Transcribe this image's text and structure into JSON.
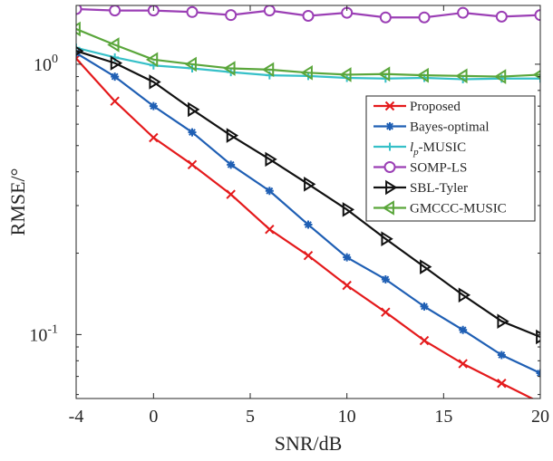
{
  "chart_data": {
    "type": "line",
    "title": "",
    "xlabel": "SNR/dB",
    "ylabel": "RMSE/°",
    "xlim": [
      -4,
      20
    ],
    "ylim": [
      0.058,
      1.65
    ],
    "yscale": "log",
    "grid": false,
    "legend_position": "right",
    "x_ticks": [
      {
        "value": -4,
        "label": "-4"
      },
      {
        "value": 0,
        "label": "0"
      },
      {
        "value": 5,
        "label": "5"
      },
      {
        "value": 10,
        "label": "10"
      },
      {
        "value": 15,
        "label": "15"
      },
      {
        "value": 20,
        "label": "20"
      }
    ],
    "y_ticks": [
      {
        "value": 1,
        "base": "10",
        "exp": "0"
      },
      {
        "value": 0.1,
        "base": "10",
        "exp": "-1"
      }
    ],
    "x": [
      -4,
      -2,
      0,
      2,
      4,
      6,
      8,
      10,
      12,
      14,
      16,
      18,
      20
    ],
    "series": [
      {
        "name": "Proposed",
        "legend_label": {
          "main": "Proposed"
        },
        "color": "#e41a1c",
        "marker": "x",
        "values": [
          1.05,
          0.73,
          0.535,
          0.425,
          0.33,
          0.245,
          0.196,
          0.152,
          0.121,
          0.095,
          0.078,
          0.066,
          0.056
        ]
      },
      {
        "name": "Bayes-optimal",
        "legend_label": {
          "main": "Bayes-optimal"
        },
        "color": "#1f5fb4",
        "marker": "star",
        "values": [
          1.1,
          0.9,
          0.7,
          0.56,
          0.425,
          0.34,
          0.255,
          0.193,
          0.16,
          0.127,
          0.104,
          0.084,
          0.072
        ]
      },
      {
        "name": "lp-MUSIC",
        "legend_label": {
          "main": "-MUSIC",
          "italic": "l",
          "sub": "p"
        },
        "color": "#36c0c8",
        "marker": "plus",
        "values": [
          1.15,
          1.06,
          0.99,
          0.965,
          0.935,
          0.91,
          0.905,
          0.89,
          0.885,
          0.89,
          0.88,
          0.885,
          0.885
        ]
      },
      {
        "name": "SOMP-LS",
        "legend_label": {
          "main": "SOMP-LS"
        },
        "color": "#9b3fb5",
        "marker": "circle",
        "values": [
          1.6,
          1.58,
          1.58,
          1.56,
          1.52,
          1.58,
          1.51,
          1.55,
          1.49,
          1.49,
          1.55,
          1.5,
          1.52
        ]
      },
      {
        "name": "SBL-Tyler",
        "legend_label": {
          "main": "SBL-Tyler"
        },
        "color": "#111111",
        "marker": "triangle-right",
        "values": [
          1.12,
          1.01,
          0.86,
          0.68,
          0.545,
          0.445,
          0.36,
          0.29,
          0.226,
          0.178,
          0.14,
          0.112,
          0.098
        ]
      },
      {
        "name": "GMCCC-MUSIC",
        "legend_label": {
          "main": "GMCCC-MUSIC"
        },
        "color": "#5aa63b",
        "marker": "triangle-left",
        "values": [
          1.35,
          1.18,
          1.04,
          1.0,
          0.965,
          0.955,
          0.93,
          0.915,
          0.92,
          0.91,
          0.905,
          0.9,
          0.915
        ]
      }
    ]
  }
}
